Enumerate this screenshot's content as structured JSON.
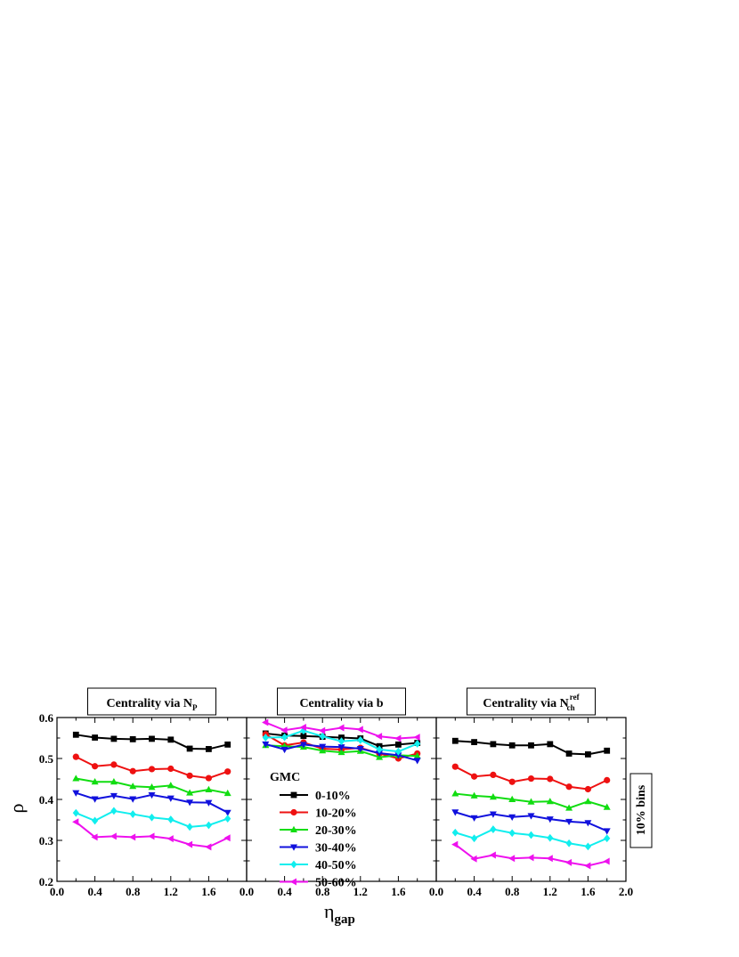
{
  "chart_data": {
    "type": "line",
    "ylabel": "ρ",
    "xlabel_main": "η",
    "xlabel_sub": "gap",
    "ylim": [
      0.2,
      0.6
    ],
    "yticks": [
      "0.2",
      "0.3",
      "0.4",
      "0.5",
      "0.6"
    ],
    "side_label": "10% bins",
    "legend_title": "GMC",
    "series_colors": [
      "#000000",
      "#ee1111",
      "#11dd11",
      "#1111dd",
      "#11eeee",
      "#ee11ee"
    ],
    "series_markers": [
      "square",
      "circle",
      "triangle-up",
      "triangle-down",
      "diamond",
      "triangle-left"
    ],
    "legend_labels": [
      "0-10%",
      "10-20%",
      "20-30%",
      "30-40%",
      "40-50%",
      "50-60%"
    ],
    "x": [
      0.2,
      0.4,
      0.6,
      0.8,
      1.0,
      1.2,
      1.4,
      1.6,
      1.8
    ],
    "panels": [
      {
        "title_main": "Centrality via N",
        "title_sub": "P",
        "title_sup": "",
        "xlim": [
          0.0,
          2.0
        ],
        "xticks": [
          "0.0",
          "0.4",
          "0.8",
          "1.2",
          "1.6"
        ],
        "series": [
          {
            "values": [
              0.558,
              0.551,
              0.548,
              0.547,
              0.548,
              0.546,
              0.524,
              0.523,
              0.534
            ]
          },
          {
            "values": [
              0.504,
              0.481,
              0.485,
              0.469,
              0.474,
              0.475,
              0.458,
              0.452,
              0.468
            ]
          },
          {
            "values": [
              0.451,
              0.443,
              0.443,
              0.432,
              0.43,
              0.434,
              0.416,
              0.424,
              0.415
            ]
          },
          {
            "values": [
              0.416,
              0.401,
              0.409,
              0.401,
              0.411,
              0.403,
              0.393,
              0.392,
              0.368
            ]
          },
          {
            "values": [
              0.367,
              0.348,
              0.372,
              0.364,
              0.356,
              0.351,
              0.333,
              0.337,
              0.353
            ]
          },
          {
            "values": [
              0.345,
              0.308,
              0.31,
              0.308,
              0.31,
              0.304,
              0.29,
              0.284,
              0.306
            ]
          }
        ]
      },
      {
        "title_main": "Centrality via b",
        "title_sub": "",
        "title_sup": "",
        "xlim": [
          0.0,
          2.0
        ],
        "xticks": [
          "0.0",
          "0.4",
          "0.8",
          "1.2",
          "1.6"
        ],
        "series": [
          {
            "values": [
              0.561,
              0.556,
              0.555,
              0.553,
              0.551,
              0.549,
              0.53,
              0.534,
              0.538
            ]
          },
          {
            "values": [
              0.559,
              0.532,
              0.539,
              0.524,
              0.522,
              0.526,
              0.512,
              0.5,
              0.512
            ]
          },
          {
            "values": [
              0.532,
              0.53,
              0.528,
              0.519,
              0.515,
              0.518,
              0.503,
              0.508,
              0.506
            ]
          },
          {
            "values": [
              0.535,
              0.522,
              0.534,
              0.529,
              0.528,
              0.524,
              0.513,
              0.508,
              0.495
            ]
          },
          {
            "values": [
              0.551,
              0.552,
              0.568,
              0.554,
              0.542,
              0.545,
              0.522,
              0.517,
              0.536
            ]
          },
          {
            "values": [
              0.588,
              0.569,
              0.576,
              0.568,
              0.575,
              0.571,
              0.554,
              0.549,
              0.552
            ]
          }
        ]
      },
      {
        "title_main": "Centrality via N",
        "title_sub": "ch",
        "title_sup": "ref",
        "xlim": [
          0.0,
          2.0
        ],
        "xticks": [
          "0.0",
          "0.4",
          "0.8",
          "1.2",
          "1.6",
          "2.0"
        ],
        "series": [
          {
            "values": [
              0.543,
              0.54,
              0.535,
              0.532,
              0.532,
              0.535,
              0.512,
              0.51,
              0.519
            ]
          },
          {
            "values": [
              0.48,
              0.456,
              0.46,
              0.443,
              0.451,
              0.45,
              0.431,
              0.425,
              0.447
            ]
          },
          {
            "values": [
              0.414,
              0.409,
              0.406,
              0.4,
              0.394,
              0.395,
              0.379,
              0.395,
              0.381
            ]
          },
          {
            "values": [
              0.369,
              0.355,
              0.364,
              0.357,
              0.36,
              0.352,
              0.346,
              0.343,
              0.323
            ]
          },
          {
            "values": [
              0.319,
              0.305,
              0.327,
              0.318,
              0.313,
              0.306,
              0.293,
              0.285,
              0.305
            ]
          },
          {
            "values": [
              0.29,
              0.255,
              0.264,
              0.256,
              0.258,
              0.256,
              0.246,
              0.238,
              0.249
            ]
          }
        ]
      }
    ]
  }
}
